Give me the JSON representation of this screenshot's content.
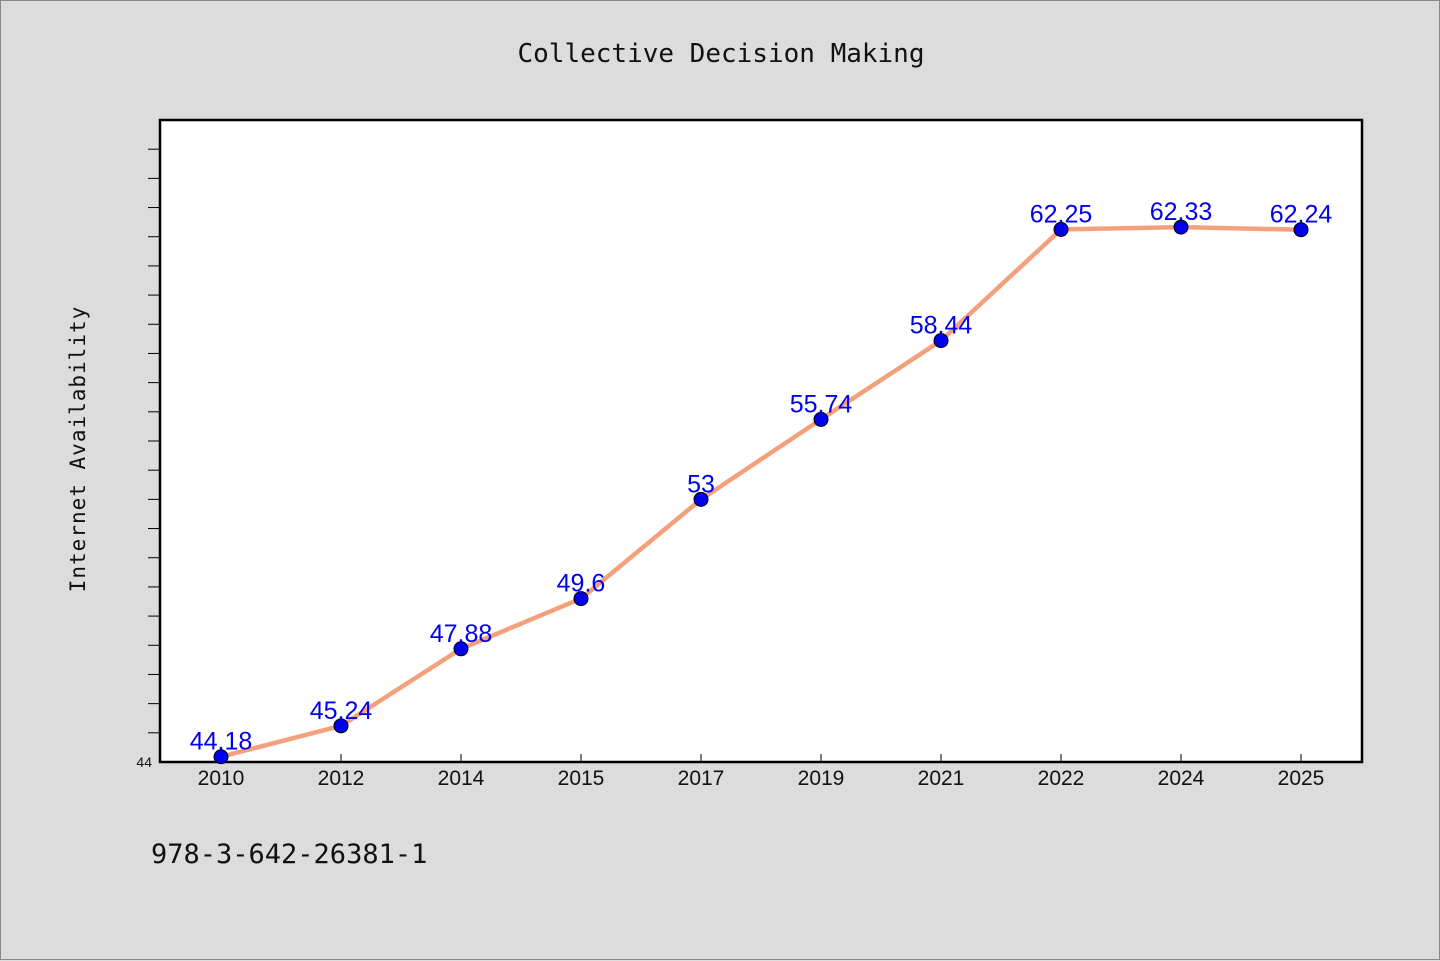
{
  "chart_data": {
    "type": "line",
    "title": "Collective Decision Making",
    "xlabel": "",
    "ylabel": "Internet Availability",
    "categories": [
      "2010",
      "2012",
      "2014",
      "2015",
      "2017",
      "2019",
      "2021",
      "2022",
      "2024",
      "2025"
    ],
    "series": [
      {
        "values": [
          44.18,
          45.24,
          47.88,
          49.6,
          53,
          55.74,
          58.44,
          62.25,
          62.33,
          62.24
        ],
        "labels": [
          "44.18",
          "45.24",
          "47.88",
          "49.6",
          "53",
          "55.74",
          "58.44",
          "62.25",
          "62.33",
          "62.24"
        ]
      }
    ],
    "ylim": [
      44,
      66
    ],
    "y_tick_labels": [
      "44"
    ],
    "grid": false,
    "line_color": "#f4a07c",
    "marker_color": "#0000ee",
    "label_color": "#0000ee"
  },
  "footer_text": "978-3-642-26381-1"
}
